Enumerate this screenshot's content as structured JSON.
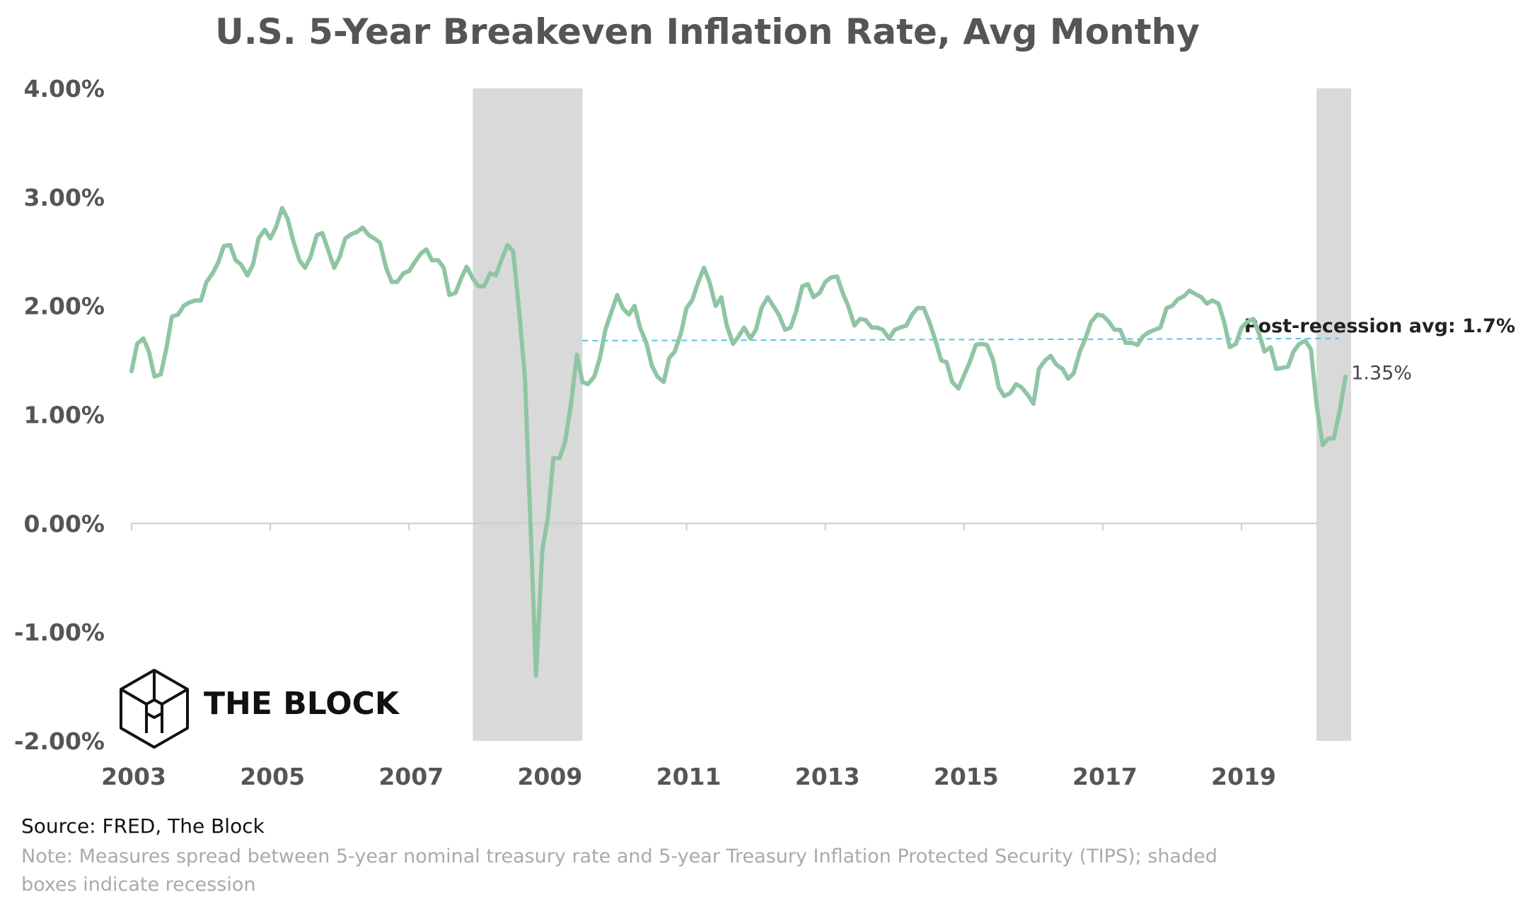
{
  "colors": {
    "line": "#8fc5a3",
    "recession": "#d9d9d9",
    "avg_line": "#5bc0de",
    "text": "#555555",
    "axis": "#cccccc"
  },
  "brand": {
    "name": "THE BLOCK",
    "icon": "cube-logo-icon"
  },
  "footer": {
    "source": "Source: FRED, The Block",
    "note": "Note: Measures spread between 5-year nominal treasury rate and 5-year Treasury Inflation Protected Security (TIPS); shaded boxes indicate recession"
  },
  "chart_data": {
    "type": "line",
    "title": "U.S. 5-Year Breakeven Inflation Rate, Avg Monthy",
    "xlabel": "",
    "ylabel": "",
    "xlim": [
      2003.0,
      2020.6
    ],
    "ylim": [
      -2.0,
      4.0
    ],
    "x_ticks": [
      2003,
      2005,
      2007,
      2009,
      2011,
      2013,
      2015,
      2017,
      2019
    ],
    "x_tick_labels": [
      "2003",
      "2005",
      "2007",
      "2009",
      "2011",
      "2013",
      "2015",
      "2017",
      "2019"
    ],
    "y_ticks": [
      -2,
      -1,
      0,
      1,
      2,
      3,
      4
    ],
    "y_tick_labels": [
      "-2.00%",
      "-1.00%",
      "0.00%",
      "1.00%",
      "2.00%",
      "3.00%",
      "4.00%"
    ],
    "grid": false,
    "recessions": [
      [
        2007.92,
        2009.5
      ],
      [
        2020.08,
        2020.58
      ]
    ],
    "reference_line": {
      "value": 1.68,
      "x_start": 2009.5,
      "x_end": 2020.4,
      "label": "Post-recession avg: 1.7%"
    },
    "end_label": "1.35%",
    "series": [
      {
        "points": [
          [
            2003.0,
            1.4
          ],
          [
            2003.08,
            1.65
          ],
          [
            2003.17,
            1.7
          ],
          [
            2003.25,
            1.58
          ],
          [
            2003.33,
            1.35
          ],
          [
            2003.42,
            1.37
          ],
          [
            2003.5,
            1.6
          ],
          [
            2003.58,
            1.9
          ],
          [
            2003.67,
            1.92
          ],
          [
            2003.75,
            2.0
          ],
          [
            2003.83,
            2.03
          ],
          [
            2003.92,
            2.05
          ],
          [
            2004.0,
            2.05
          ],
          [
            2004.08,
            2.22
          ],
          [
            2004.17,
            2.3
          ],
          [
            2004.25,
            2.4
          ],
          [
            2004.33,
            2.55
          ],
          [
            2004.42,
            2.56
          ],
          [
            2004.5,
            2.42
          ],
          [
            2004.58,
            2.38
          ],
          [
            2004.67,
            2.28
          ],
          [
            2004.75,
            2.38
          ],
          [
            2004.83,
            2.62
          ],
          [
            2004.92,
            2.7
          ],
          [
            2005.0,
            2.62
          ],
          [
            2005.08,
            2.72
          ],
          [
            2005.17,
            2.9
          ],
          [
            2005.25,
            2.8
          ],
          [
            2005.33,
            2.6
          ],
          [
            2005.42,
            2.42
          ],
          [
            2005.5,
            2.35
          ],
          [
            2005.58,
            2.45
          ],
          [
            2005.67,
            2.65
          ],
          [
            2005.75,
            2.67
          ],
          [
            2005.83,
            2.52
          ],
          [
            2005.92,
            2.35
          ],
          [
            2006.0,
            2.45
          ],
          [
            2006.08,
            2.62
          ],
          [
            2006.17,
            2.66
          ],
          [
            2006.25,
            2.68
          ],
          [
            2006.33,
            2.72
          ],
          [
            2006.42,
            2.65
          ],
          [
            2006.5,
            2.62
          ],
          [
            2006.58,
            2.58
          ],
          [
            2006.67,
            2.35
          ],
          [
            2006.75,
            2.22
          ],
          [
            2006.83,
            2.22
          ],
          [
            2006.92,
            2.3
          ],
          [
            2007.0,
            2.32
          ],
          [
            2007.08,
            2.4
          ],
          [
            2007.17,
            2.48
          ],
          [
            2007.25,
            2.52
          ],
          [
            2007.33,
            2.42
          ],
          [
            2007.42,
            2.42
          ],
          [
            2007.5,
            2.35
          ],
          [
            2007.58,
            2.1
          ],
          [
            2007.67,
            2.12
          ],
          [
            2007.75,
            2.25
          ],
          [
            2007.83,
            2.36
          ],
          [
            2007.92,
            2.25
          ],
          [
            2008.0,
            2.18
          ],
          [
            2008.08,
            2.18
          ],
          [
            2008.17,
            2.3
          ],
          [
            2008.25,
            2.28
          ],
          [
            2008.33,
            2.42
          ],
          [
            2008.42,
            2.56
          ],
          [
            2008.5,
            2.5
          ],
          [
            2008.58,
            2.0
          ],
          [
            2008.67,
            1.35
          ],
          [
            2008.75,
            0.0
          ],
          [
            2008.83,
            -1.4
          ],
          [
            2008.92,
            -0.25
          ],
          [
            2009.0,
            0.05
          ],
          [
            2009.08,
            0.6
          ],
          [
            2009.17,
            0.6
          ],
          [
            2009.25,
            0.75
          ],
          [
            2009.33,
            1.08
          ],
          [
            2009.42,
            1.55
          ],
          [
            2009.5,
            1.3
          ],
          [
            2009.58,
            1.28
          ],
          [
            2009.67,
            1.35
          ],
          [
            2009.75,
            1.52
          ],
          [
            2009.83,
            1.78
          ],
          [
            2009.92,
            1.95
          ],
          [
            2010.0,
            2.1
          ],
          [
            2010.08,
            1.98
          ],
          [
            2010.17,
            1.92
          ],
          [
            2010.25,
            2.0
          ],
          [
            2010.33,
            1.8
          ],
          [
            2010.42,
            1.66
          ],
          [
            2010.5,
            1.45
          ],
          [
            2010.58,
            1.35
          ],
          [
            2010.67,
            1.3
          ],
          [
            2010.75,
            1.52
          ],
          [
            2010.83,
            1.58
          ],
          [
            2010.92,
            1.75
          ],
          [
            2011.0,
            1.98
          ],
          [
            2011.08,
            2.05
          ],
          [
            2011.17,
            2.22
          ],
          [
            2011.25,
            2.35
          ],
          [
            2011.33,
            2.22
          ],
          [
            2011.42,
            2.0
          ],
          [
            2011.5,
            2.08
          ],
          [
            2011.58,
            1.82
          ],
          [
            2011.67,
            1.65
          ],
          [
            2011.75,
            1.72
          ],
          [
            2011.83,
            1.8
          ],
          [
            2011.92,
            1.7
          ],
          [
            2012.0,
            1.78
          ],
          [
            2012.08,
            1.98
          ],
          [
            2012.17,
            2.08
          ],
          [
            2012.25,
            2.0
          ],
          [
            2012.33,
            1.92
          ],
          [
            2012.42,
            1.78
          ],
          [
            2012.5,
            1.8
          ],
          [
            2012.58,
            1.95
          ],
          [
            2012.67,
            2.18
          ],
          [
            2012.75,
            2.2
          ],
          [
            2012.83,
            2.08
          ],
          [
            2012.92,
            2.12
          ],
          [
            2013.0,
            2.22
          ],
          [
            2013.08,
            2.26
          ],
          [
            2013.17,
            2.27
          ],
          [
            2013.25,
            2.12
          ],
          [
            2013.33,
            2.0
          ],
          [
            2013.42,
            1.82
          ],
          [
            2013.5,
            1.88
          ],
          [
            2013.58,
            1.87
          ],
          [
            2013.67,
            1.8
          ],
          [
            2013.75,
            1.8
          ],
          [
            2013.83,
            1.78
          ],
          [
            2013.92,
            1.7
          ],
          [
            2014.0,
            1.78
          ],
          [
            2014.08,
            1.8
          ],
          [
            2014.17,
            1.82
          ],
          [
            2014.25,
            1.92
          ],
          [
            2014.33,
            1.98
          ],
          [
            2014.42,
            1.98
          ],
          [
            2014.5,
            1.85
          ],
          [
            2014.58,
            1.7
          ],
          [
            2014.67,
            1.5
          ],
          [
            2014.75,
            1.48
          ],
          [
            2014.83,
            1.3
          ],
          [
            2014.92,
            1.24
          ],
          [
            2015.0,
            1.36
          ],
          [
            2015.08,
            1.48
          ],
          [
            2015.17,
            1.64
          ],
          [
            2015.25,
            1.65
          ],
          [
            2015.33,
            1.64
          ],
          [
            2015.42,
            1.5
          ],
          [
            2015.5,
            1.25
          ],
          [
            2015.58,
            1.17
          ],
          [
            2015.67,
            1.2
          ],
          [
            2015.75,
            1.28
          ],
          [
            2015.83,
            1.25
          ],
          [
            2015.92,
            1.18
          ],
          [
            2016.0,
            1.1
          ],
          [
            2016.08,
            1.42
          ],
          [
            2016.17,
            1.5
          ],
          [
            2016.25,
            1.54
          ],
          [
            2016.33,
            1.46
          ],
          [
            2016.42,
            1.42
          ],
          [
            2016.5,
            1.33
          ],
          [
            2016.58,
            1.38
          ],
          [
            2016.67,
            1.58
          ],
          [
            2016.75,
            1.7
          ],
          [
            2016.83,
            1.85
          ],
          [
            2016.92,
            1.92
          ],
          [
            2017.0,
            1.91
          ],
          [
            2017.08,
            1.86
          ],
          [
            2017.17,
            1.78
          ],
          [
            2017.25,
            1.78
          ],
          [
            2017.33,
            1.66
          ],
          [
            2017.42,
            1.66
          ],
          [
            2017.5,
            1.64
          ],
          [
            2017.58,
            1.72
          ],
          [
            2017.67,
            1.76
          ],
          [
            2017.75,
            1.78
          ],
          [
            2017.83,
            1.8
          ],
          [
            2017.92,
            1.98
          ],
          [
            2018.0,
            2.0
          ],
          [
            2018.08,
            2.06
          ],
          [
            2018.17,
            2.09
          ],
          [
            2018.25,
            2.14
          ],
          [
            2018.33,
            2.11
          ],
          [
            2018.42,
            2.08
          ],
          [
            2018.5,
            2.02
          ],
          [
            2018.58,
            2.05
          ],
          [
            2018.67,
            2.02
          ],
          [
            2018.75,
            1.85
          ],
          [
            2018.83,
            1.62
          ],
          [
            2018.92,
            1.65
          ],
          [
            2019.0,
            1.8
          ],
          [
            2019.08,
            1.85
          ],
          [
            2019.17,
            1.88
          ],
          [
            2019.25,
            1.75
          ],
          [
            2019.33,
            1.58
          ],
          [
            2019.42,
            1.62
          ],
          [
            2019.5,
            1.42
          ],
          [
            2019.58,
            1.43
          ],
          [
            2019.67,
            1.44
          ],
          [
            2019.75,
            1.58
          ],
          [
            2019.83,
            1.65
          ],
          [
            2019.92,
            1.68
          ],
          [
            2020.0,
            1.6
          ],
          [
            2020.08,
            1.1
          ],
          [
            2020.17,
            0.72
          ],
          [
            2020.25,
            0.78
          ],
          [
            2020.33,
            0.78
          ],
          [
            2020.42,
            1.05
          ],
          [
            2020.5,
            1.35
          ]
        ]
      }
    ]
  }
}
